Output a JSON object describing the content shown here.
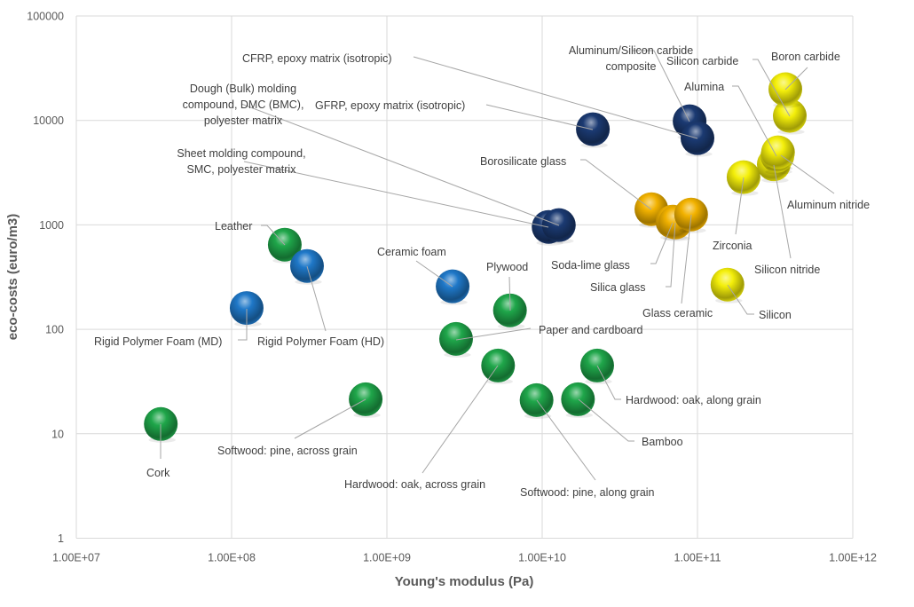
{
  "chart_data": {
    "type": "scatter",
    "subtype": "bubble-3d",
    "title": "",
    "xlabel": "Young's modulus (Pa)",
    "ylabel": "eco-costs (euro/m3)",
    "xscale": "log",
    "yscale": "log",
    "xlim": [
      10000000.0,
      1000000000000.0
    ],
    "ylim": [
      1,
      100000
    ],
    "x_ticks": [
      "1.00E+07",
      "1.00E+08",
      "1.00E+09",
      "1.00E+10",
      "1.00E+11",
      "1.00E+12"
    ],
    "y_ticks": [
      "1",
      "10",
      "100",
      "1000",
      "10000",
      "100000"
    ],
    "grid": true,
    "legend": null,
    "colors": {
      "natural": "#1fa64a",
      "foam": "#1f78c8",
      "composite": "#1b3a72",
      "glass": "#f2b200",
      "ceramic": "#f4ef0a"
    },
    "points": [
      {
        "name": "Cork",
        "x": 35000000.0,
        "y": 12.4,
        "group": "natural",
        "label": [
          165,
          537
        ],
        "anchor": "start",
        "line": [
          [
            181,
            478
          ],
          [
            181,
            517
          ]
        ]
      },
      {
        "name": "Rigid Polymer Foam (MD)",
        "x": 125000000.0,
        "y": 160,
        "group": "foam",
        "label": [
          106,
          389
        ],
        "anchor": "start",
        "line": [
          [
            278,
            348
          ],
          [
            278,
            383
          ],
          [
            268,
            383
          ]
        ]
      },
      {
        "name": "Leather",
        "x": 220000000.0,
        "y": 646,
        "group": "natural",
        "label": [
          242,
          259
        ],
        "anchor": "start",
        "line": [
          [
            294,
            254
          ],
          [
            301,
            254
          ],
          [
            321,
            276
          ]
        ]
      },
      {
        "name": "Rigid Polymer Foam (HD)",
        "x": 306000000.0,
        "y": 404,
        "group": "foam",
        "label": [
          290,
          389
        ],
        "anchor": "start",
        "line": [
          [
            346,
            300
          ],
          [
            367,
            373
          ]
        ]
      },
      {
        "name": "Softwood: pine, across grain",
        "x": 730000000.0,
        "y": 21.4,
        "group": "natural",
        "label": [
          245,
          512
        ],
        "anchor": "start",
        "line": [
          [
            412,
            450
          ],
          [
            332,
            494
          ]
        ]
      },
      {
        "name": "Ceramic foam",
        "x": 2650000000.0,
        "y": 258,
        "group": "foam",
        "label": [
          425,
          288
        ],
        "anchor": "start",
        "line": [
          [
            469,
            294
          ],
          [
            510,
            323
          ]
        ]
      },
      {
        "name": "Paper and cardboard",
        "x": 2790000000.0,
        "y": 81,
        "group": "natural",
        "label": [
          607,
          376
        ],
        "anchor": "start",
        "line": [
          [
            514,
            383
          ],
          [
            598,
            370
          ]
        ]
      },
      {
        "name": "Hardwood: oak, across grain",
        "x": 5200000000.0,
        "y": 45,
        "group": "natural",
        "label": [
          388,
          550
        ],
        "anchor": "start",
        "line": [
          [
            561,
            412
          ],
          [
            476,
            533
          ]
        ]
      },
      {
        "name": "Plywood",
        "x": 6200000000.0,
        "y": 152,
        "group": "natural",
        "label": [
          548,
          305
        ],
        "anchor": "start",
        "line": [
          [
            574,
            312
          ],
          [
            575,
            350
          ]
        ]
      },
      {
        "name": "Softwood: pine, along grain",
        "x": 9200000000.0,
        "y": 21,
        "group": "natural",
        "label": [
          586,
          559
        ],
        "anchor": "start",
        "line": [
          [
            605,
            451
          ],
          [
            671,
            541
          ]
        ]
      },
      {
        "name": "Bamboo",
        "x": 17000000000.0,
        "y": 21.4,
        "group": "natural",
        "label": [
          723,
          502
        ],
        "anchor": "start",
        "line": [
          [
            652,
            450
          ],
          [
            708,
            497
          ],
          [
            715,
            497
          ]
        ]
      },
      {
        "name": "Hardwood: oak, along grain",
        "x": 22600000000.0,
        "y": 45,
        "group": "natural",
        "label": [
          705,
          455
        ],
        "anchor": "start",
        "line": [
          [
            673,
            412
          ],
          [
            693,
            450
          ],
          [
            700,
            450
          ]
        ]
      },
      {
        "name": "Sheet molding compound, SMC, polyester matrix",
        "lines": [
          "Sheet molding compound,",
          "SMC, polyester matrix"
        ],
        "x": 11000000000.0,
        "y": 956,
        "group": "composite",
        "label": [
          188,
          177
        ],
        "anchor": "middle",
        "line": [
          [
            275,
            182
          ],
          [
            618,
            256
          ]
        ]
      },
      {
        "name": "Dough (Bulk) molding compound, DMC (BMC), polyester matrix",
        "lines": [
          "Dough (Bulk) molding",
          "compound, DMC (BMC),",
          "polyester matrix"
        ],
        "x": 12800000000.0,
        "y": 995,
        "group": "composite",
        "label": [
          190,
          104
        ],
        "anchor": "middle",
        "line": [
          [
            272,
            117
          ],
          [
            630,
            254
          ]
        ]
      },
      {
        "name": "GFRP, epoxy matrix (isotropic)",
        "x": 21200000000.0,
        "y": 8240,
        "group": "composite",
        "label": [
          355,
          123
        ],
        "anchor": "start",
        "line": [
          [
            548,
            118
          ],
          [
            668,
            146
          ]
        ]
      },
      {
        "name": "Aluminum/Silicon carbide composite",
        "lines": [
          "Aluminum/Silicon carbide",
          "composite"
        ],
        "x": 89000000000.0,
        "y": 9820,
        "group": "composite",
        "label": [
          627,
          61
        ],
        "anchor": "middle",
        "line": [
          [
            713,
            57
          ],
          [
            737,
            57
          ],
          [
            777,
            137
          ]
        ]
      },
      {
        "name": "CFRP, epoxy matrix (isotropic)",
        "x": 100000000000.0,
        "y": 6770,
        "group": "composite",
        "label": [
          273,
          70
        ],
        "anchor": "start",
        "line": [
          [
            466,
            64
          ],
          [
            786,
            156
          ]
        ]
      },
      {
        "name": "Borosilicate glass",
        "x": 50500000000.0,
        "y": 1413,
        "group": "glass",
        "label": [
          541,
          186
        ],
        "anchor": "start",
        "line": [
          [
            654,
            180
          ],
          [
            660,
            180
          ],
          [
            734,
            236
          ]
        ]
      },
      {
        "name": "Soda-lime glass",
        "x": 69000000000.0,
        "y": 1075,
        "group": "glass",
        "label": [
          621,
          303
        ],
        "anchor": "start",
        "line": [
          [
            733,
            297
          ],
          [
            739,
            297
          ],
          [
            758,
            251
          ]
        ]
      },
      {
        "name": "Silica glass",
        "x": 72000000000.0,
        "y": 1055,
        "group": "glass",
        "label": [
          665,
          328
        ],
        "anchor": "start",
        "line": [
          [
            750,
            323
          ],
          [
            756,
            323
          ],
          [
            761,
            251
          ]
        ]
      },
      {
        "name": "Glass ceramic",
        "x": 91000000000.0,
        "y": 1257,
        "group": "glass",
        "label": [
          724,
          357
        ],
        "anchor": "start",
        "line": [
          [
            768,
            342
          ],
          [
            779,
            242
          ]
        ]
      },
      {
        "name": "Silicon",
        "x": 156000000000.0,
        "y": 268,
        "group": "ceramic",
        "label": [
          855,
          359
        ],
        "anchor": "start",
        "line": [
          [
            820,
            321
          ],
          [
            842,
            354
          ],
          [
            850,
            354
          ]
        ]
      },
      {
        "name": "Zirconia",
        "x": 198000000000.0,
        "y": 2863,
        "group": "ceramic",
        "label": [
          803,
          281
        ],
        "anchor": "start",
        "line": [
          [
            838,
            200
          ],
          [
            829,
            264
          ]
        ]
      },
      {
        "name": "Silicon nitride",
        "x": 310000000000.0,
        "y": 3800,
        "group": "ceramic",
        "label": [
          850,
          308
        ],
        "anchor": "start",
        "line": [
          [
            872,
            186
          ],
          [
            891,
            291
          ]
        ]
      },
      {
        "name": "Alumina",
        "x": 327000000000.0,
        "y": 4580,
        "group": "ceramic",
        "label": [
          771,
          102
        ],
        "anchor": "start",
        "line": [
          [
            825,
            97
          ],
          [
            832,
            97
          ],
          [
            875,
            176
          ]
        ]
      },
      {
        "name": "Aluminum nitride",
        "x": 330000000000.0,
        "y": 4950,
        "group": "ceramic",
        "label": [
          887,
          235
        ],
        "anchor": "start",
        "line": [
          [
            880,
            175
          ],
          [
            940,
            218
          ]
        ]
      },
      {
        "name": "Silicon carbide",
        "x": 393000000000.0,
        "y": 11050,
        "group": "ceramic",
        "label": [
          751,
          73
        ],
        "anchor": "start",
        "line": [
          [
            848,
            67
          ],
          [
            854,
            67
          ],
          [
            890,
            131
          ]
        ]
      },
      {
        "name": "Boron carbide",
        "x": 368000000000.0,
        "y": 19900,
        "group": "ceramic",
        "label": [
          869,
          68
        ],
        "anchor": "start",
        "line": [
          [
            910,
            76
          ],
          [
            885,
            101
          ]
        ]
      }
    ]
  }
}
